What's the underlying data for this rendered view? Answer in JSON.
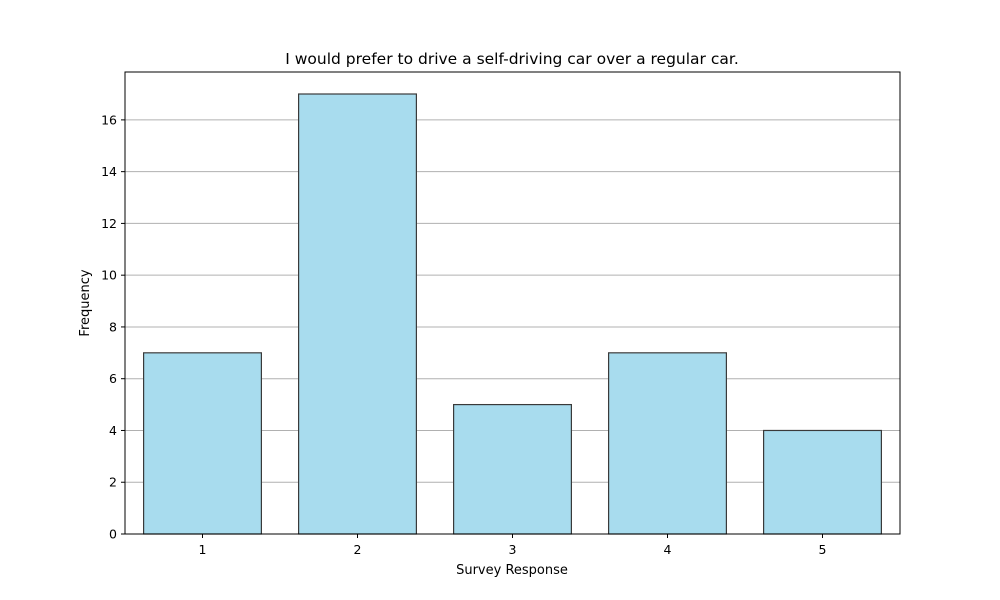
{
  "chart_data": {
    "type": "bar",
    "title": "I would prefer to drive a self-driving car over a regular car.",
    "xlabel": "Survey Response",
    "ylabel": "Frequency",
    "categories": [
      "1",
      "2",
      "3",
      "4",
      "5"
    ],
    "values": [
      7,
      17,
      5,
      7,
      4
    ],
    "ylim": [
      0,
      17.85
    ],
    "yticks": [
      0,
      2,
      4,
      6,
      8,
      10,
      12,
      14,
      16
    ],
    "grid": "y",
    "legend": "none"
  },
  "colors": {
    "bar_fill": "#a8dcee",
    "bar_edge": "#3a3a3a",
    "grid": "#b0b0b0",
    "axes": "#000000"
  }
}
